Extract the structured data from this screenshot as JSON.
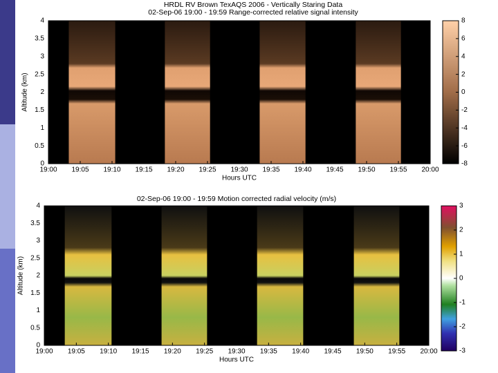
{
  "chart_data": [
    {
      "type": "heatmap",
      "title": "HRDL RV Brown TexAQS 2006 - Vertically Staring Data",
      "subtitle": "02-Sep-06 19:00 - 19:59 Range-corrected relative signal intensity",
      "xlabel": "Hours UTC",
      "ylabel": "Altitude (km)",
      "xlim": [
        0,
        60
      ],
      "ylim": [
        0,
        4
      ],
      "xticks": [
        {
          "value": 0,
          "label": "19:00"
        },
        {
          "value": 5,
          "label": "19:05"
        },
        {
          "value": 10,
          "label": "19:10"
        },
        {
          "value": 15,
          "label": "19:15"
        },
        {
          "value": 20,
          "label": "19:20"
        },
        {
          "value": 25,
          "label": "19:25"
        },
        {
          "value": 30,
          "label": "19:30"
        },
        {
          "value": 35,
          "label": "19:35"
        },
        {
          "value": 40,
          "label": "19:40"
        },
        {
          "value": 45,
          "label": "19:45"
        },
        {
          "value": 50,
          "label": "19:50"
        },
        {
          "value": 55,
          "label": "19:55"
        },
        {
          "value": 60,
          "label": "20:00"
        }
      ],
      "yticks": [
        0,
        0.5,
        1,
        1.5,
        2,
        2.5,
        3,
        3.5,
        4
      ],
      "clim": [
        -8,
        8
      ],
      "cticks": [
        -8,
        -6,
        -4,
        -2,
        0,
        2,
        4,
        6,
        8
      ],
      "segments": [
        [
          3.2,
          10.5
        ],
        [
          18.3,
          25.4
        ],
        [
          33.2,
          40.4
        ],
        [
          48.3,
          55.4
        ]
      ]
    },
    {
      "type": "heatmap",
      "title": "02-Sep-06 19:00 - 19:59 Motion corrected radial velocity (m/s)",
      "xlabel": "Hours UTC",
      "ylabel": "Altitude (km)",
      "xlim": [
        0,
        60
      ],
      "ylim": [
        0,
        4
      ],
      "xticks": [
        {
          "value": 0,
          "label": "19:00"
        },
        {
          "value": 5,
          "label": "19:05"
        },
        {
          "value": 10,
          "label": "19:10"
        },
        {
          "value": 15,
          "label": "19:15"
        },
        {
          "value": 20,
          "label": "19:20"
        },
        {
          "value": 25,
          "label": "19:25"
        },
        {
          "value": 30,
          "label": "19:30"
        },
        {
          "value": 35,
          "label": "19:35"
        },
        {
          "value": 40,
          "label": "19:40"
        },
        {
          "value": 45,
          "label": "19:45"
        },
        {
          "value": 50,
          "label": "19:50"
        },
        {
          "value": 55,
          "label": "19:55"
        },
        {
          "value": 60,
          "label": "20:00"
        }
      ],
      "yticks": [
        0,
        0.5,
        1,
        1.5,
        2,
        2.5,
        3,
        3.5,
        4
      ],
      "clim": [
        -3,
        3
      ],
      "cticks": [
        -3,
        -2,
        -1,
        0,
        1,
        2,
        3
      ],
      "segments": [
        [
          3.2,
          10.5
        ],
        [
          18.3,
          25.4
        ],
        [
          33.2,
          40.4
        ],
        [
          48.3,
          55.4
        ]
      ]
    }
  ]
}
